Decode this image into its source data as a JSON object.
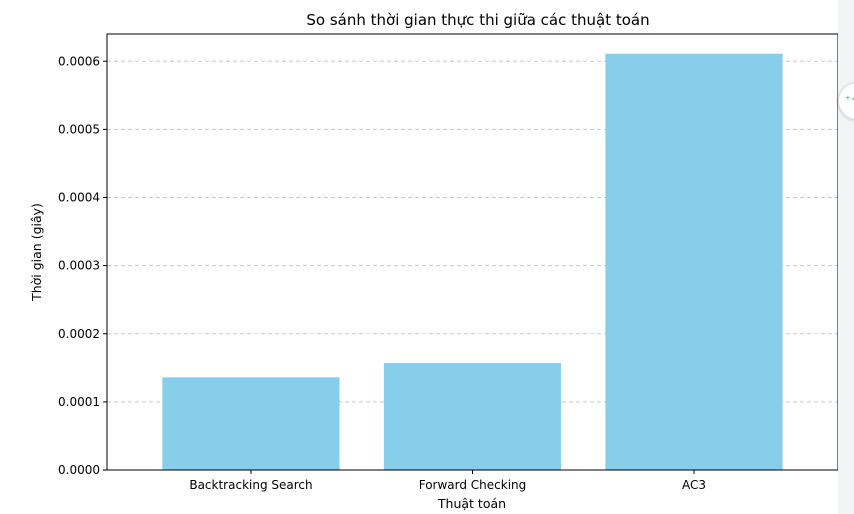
{
  "chart_data": {
    "type": "bar",
    "title": "So sánh thời gian thực thi giữa các thuật toán",
    "xlabel": "Thuật toán",
    "ylabel": "Thời gian (giây)",
    "categories": [
      "Backtracking Search",
      "Forward Checking",
      "AC3"
    ],
    "values": [
      0.000136,
      0.000157,
      0.000611
    ],
    "ylim": [
      0,
      0.00064
    ],
    "yticks": [
      0,
      0.0001,
      0.0002,
      0.0003,
      0.0004,
      0.0005,
      0.0006
    ],
    "ytick_labels": [
      "0.0000",
      "0.0001",
      "0.0002",
      "0.0003",
      "0.0004",
      "0.0005",
      "0.0006"
    ],
    "bar_color": "#87ceeb",
    "grid": "y-dashed"
  },
  "side_widget": {
    "icon": "sparkle-icon",
    "glyph": "⁺✦"
  }
}
